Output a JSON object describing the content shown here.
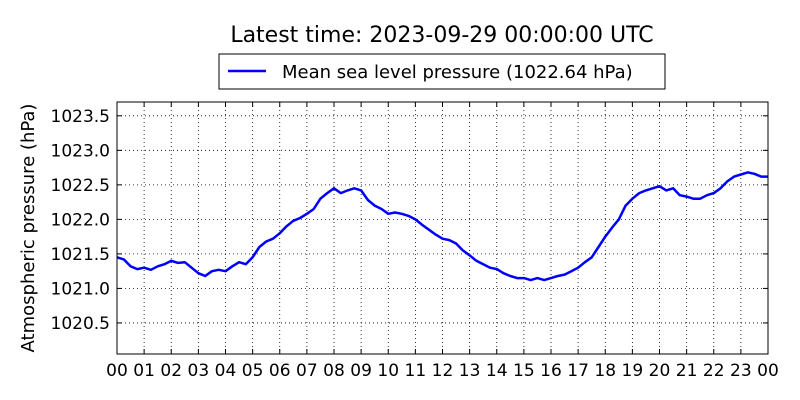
{
  "chart_data": {
    "type": "line",
    "title": "Latest time: 2023-09-29 00:00:00 UTC",
    "xlabel": "",
    "ylabel": "Atmospheric pressure (hPa)",
    "xlim": [
      0,
      24
    ],
    "ylim": [
      1020.05,
      1023.7
    ],
    "grid": true,
    "legend_position": "top-center",
    "x_ticks": [
      "00",
      "01",
      "02",
      "03",
      "04",
      "05",
      "06",
      "07",
      "08",
      "09",
      "10",
      "11",
      "12",
      "13",
      "14",
      "15",
      "16",
      "17",
      "18",
      "19",
      "20",
      "21",
      "22",
      "23",
      "00"
    ],
    "y_ticks": [
      1020.5,
      1021.0,
      1021.5,
      1022.0,
      1022.5,
      1023.0,
      1023.5
    ],
    "y_tick_labels": [
      "1020.5",
      "1021.0",
      "1021.5",
      "1022.0",
      "1022.5",
      "1023.0",
      "1023.5"
    ],
    "series": [
      {
        "name": "Mean sea level pressure (1022.64 hPa)",
        "color": "#0000ff",
        "x": [
          0,
          0.25,
          0.5,
          0.75,
          1,
          1.25,
          1.5,
          1.75,
          2,
          2.25,
          2.5,
          2.75,
          3,
          3.25,
          3.5,
          3.75,
          4,
          4.25,
          4.5,
          4.75,
          5,
          5.25,
          5.5,
          5.75,
          6,
          6.25,
          6.5,
          6.75,
          7,
          7.25,
          7.5,
          7.75,
          8,
          8.25,
          8.5,
          8.75,
          9,
          9.25,
          9.5,
          9.75,
          10,
          10.25,
          10.5,
          10.75,
          11,
          11.25,
          11.5,
          11.75,
          12,
          12.25,
          12.5,
          12.75,
          13,
          13.25,
          13.5,
          13.75,
          14,
          14.25,
          14.5,
          14.75,
          15,
          15.25,
          15.5,
          15.75,
          16,
          16.25,
          16.5,
          16.75,
          17,
          17.25,
          17.5,
          17.75,
          18,
          18.25,
          18.5,
          18.75,
          19,
          19.25,
          19.5,
          19.75,
          20,
          20.25,
          20.5,
          20.75,
          21,
          21.25,
          21.5,
          21.75,
          22,
          22.25,
          22.5,
          22.75,
          23,
          23.25,
          23.5,
          23.75,
          24
        ],
        "y": [
          1021.45,
          1021.42,
          1021.32,
          1021.28,
          1021.3,
          1021.27,
          1021.32,
          1021.35,
          1021.4,
          1021.37,
          1021.38,
          1021.3,
          1021.22,
          1021.18,
          1021.25,
          1021.27,
          1021.25,
          1021.32,
          1021.38,
          1021.35,
          1021.45,
          1021.6,
          1021.68,
          1021.72,
          1021.8,
          1021.9,
          1021.98,
          1022.02,
          1022.08,
          1022.15,
          1022.3,
          1022.38,
          1022.45,
          1022.38,
          1022.42,
          1022.45,
          1022.42,
          1022.28,
          1022.2,
          1022.15,
          1022.08,
          1022.1,
          1022.08,
          1022.05,
          1022.0,
          1021.92,
          1021.85,
          1021.78,
          1021.72,
          1021.7,
          1021.65,
          1021.55,
          1021.48,
          1021.4,
          1021.35,
          1021.3,
          1021.28,
          1021.22,
          1021.18,
          1021.15,
          1021.15,
          1021.12,
          1021.15,
          1021.12,
          1021.15,
          1021.18,
          1021.2,
          1021.25,
          1021.3,
          1021.38,
          1021.45,
          1021.6,
          1021.75,
          1021.88,
          1022.0,
          1022.2,
          1022.3,
          1022.38,
          1022.42,
          1022.45,
          1022.48,
          1022.42,
          1022.45,
          1022.35,
          1022.33,
          1022.3,
          1022.3,
          1022.35,
          1022.38,
          1022.45,
          1022.55,
          1022.62,
          1022.65,
          1022.68,
          1022.66,
          1022.62,
          1022.62
        ]
      }
    ]
  }
}
